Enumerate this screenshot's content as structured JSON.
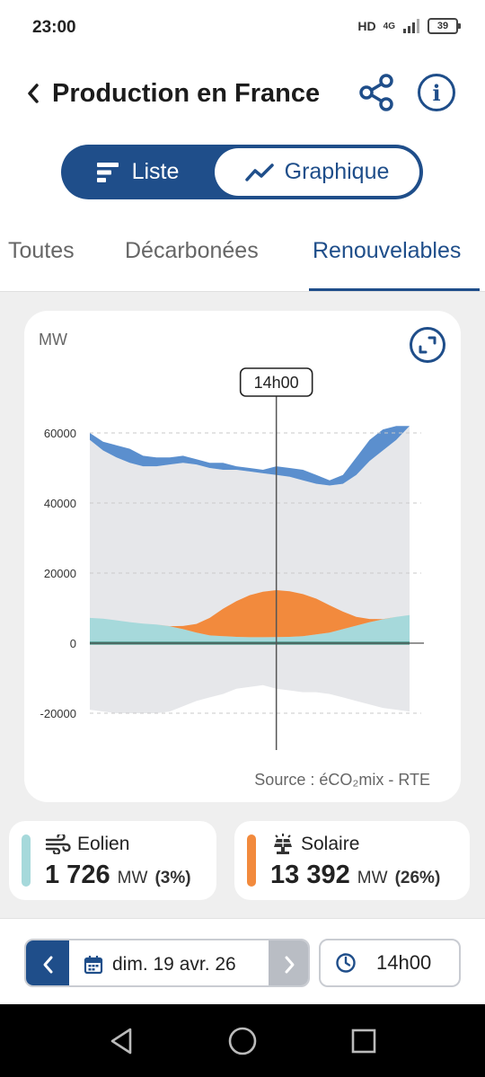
{
  "status_bar": {
    "time": "23:00",
    "network": "HD",
    "network_type": "4G",
    "battery": "39"
  },
  "header": {
    "title": "Production en France",
    "back_icon": "chevron-left-icon",
    "share_icon": "share-icon",
    "info_icon": "info-icon",
    "info_glyph": "i"
  },
  "view_toggle": {
    "list_label": "Liste",
    "chart_label": "Graphique",
    "selected": "Graphique"
  },
  "tabs": [
    {
      "label": "Toutes",
      "active": false
    },
    {
      "label": "Décarbonées",
      "active": false
    },
    {
      "label": "Renouvelables",
      "active": true
    }
  ],
  "chart": {
    "unit": "MW",
    "source": "Source : éCO₂mix - RTE",
    "cursor_label": "14h00",
    "expand_icon": "expand-icon"
  },
  "chart_data": {
    "type": "area",
    "ylabel": "MW",
    "ylim": [
      -25000,
      70000
    ],
    "yticks": [
      60000,
      40000,
      20000,
      0,
      -20000
    ],
    "ytick_labels": [
      "60000",
      "40000",
      "20000",
      "0",
      "-20000"
    ],
    "grid": true,
    "cursor_time": "14h00",
    "x_hours": [
      0,
      1,
      2,
      3,
      4,
      5,
      6,
      7,
      8,
      9,
      10,
      11,
      12,
      13,
      14,
      15,
      16,
      17,
      18,
      19,
      20,
      21,
      22,
      23,
      24
    ],
    "series": [
      {
        "key": "consumption",
        "color": "#e6e7ea",
        "values": [
          58000,
          55000,
          53000,
          51500,
          50500,
          50500,
          51000,
          51500,
          51000,
          50000,
          49500,
          49500,
          49000,
          48500,
          48000,
          47500,
          46500,
          45500,
          45000,
          45500,
          48000,
          52000,
          55000,
          58000,
          62000
        ]
      },
      {
        "key": "production-total",
        "color": "#5b8fce",
        "values": [
          60000,
          57500,
          56500,
          55500,
          53500,
          53000,
          53000,
          53500,
          52500,
          51500,
          51500,
          50500,
          50000,
          49500,
          50500,
          50000,
          49500,
          48000,
          46500,
          48000,
          53000,
          58000,
          61000,
          62000,
          62000
        ]
      },
      {
        "key": "eolien",
        "name": "Eolien",
        "color": "#a6d9db",
        "values": [
          7200,
          7000,
          6500,
          6000,
          5600,
          5300,
          4800,
          4000,
          3000,
          2200,
          2000,
          1800,
          1700,
          1700,
          1726,
          1800,
          2000,
          2500,
          3000,
          4000,
          5000,
          6000,
          6800,
          7500,
          8000
        ]
      },
      {
        "key": "solaire",
        "name": "Solaire",
        "color": "#f28a3d",
        "values": [
          0,
          0,
          0,
          0,
          0,
          0,
          50,
          900,
          2500,
          5000,
          7800,
          10200,
          12000,
          13000,
          13392,
          13000,
          12000,
          10200,
          7800,
          5000,
          2500,
          900,
          50,
          0,
          0
        ]
      },
      {
        "key": "hydro-baseline",
        "color": "#3c8e7f",
        "values": [
          400,
          400,
          400,
          400,
          400,
          400,
          400,
          400,
          400,
          400,
          400,
          400,
          400,
          400,
          400,
          400,
          400,
          400,
          400,
          400,
          400,
          400,
          400,
          400,
          400
        ]
      },
      {
        "key": "exchanges",
        "color": "#e6e7ea",
        "values": [
          -19000,
          -19500,
          -20000,
          -20000,
          -20000,
          -20000,
          -19500,
          -18000,
          -16500,
          -15500,
          -14500,
          -13000,
          -12500,
          -12000,
          -13000,
          -13500,
          -14000,
          -14000,
          -14500,
          -15500,
          -16500,
          -17500,
          -18500,
          -19000,
          -19500
        ]
      }
    ]
  },
  "stats": [
    {
      "name": "Eolien",
      "value": "1 726",
      "unit": "MW",
      "pct": "(3%)",
      "color": "#a6d9db",
      "icon": "wind-icon"
    },
    {
      "name": "Solaire",
      "value": "13 392",
      "unit": "MW",
      "pct": "(26%)",
      "color": "#f28a3d",
      "icon": "solar-panel-icon"
    }
  ],
  "date_picker": {
    "date": "dim. 19 avr. 26",
    "prev_icon": "chevron-left-icon",
    "next_icon": "chevron-right-icon",
    "calendar_icon": "calendar-icon"
  },
  "time_picker": {
    "time": "14h00",
    "clock_icon": "clock-icon"
  },
  "nav_bar": {
    "back_icon": "triangle-back-icon",
    "home_icon": "circle-home-icon",
    "recents_icon": "square-recents-icon"
  }
}
